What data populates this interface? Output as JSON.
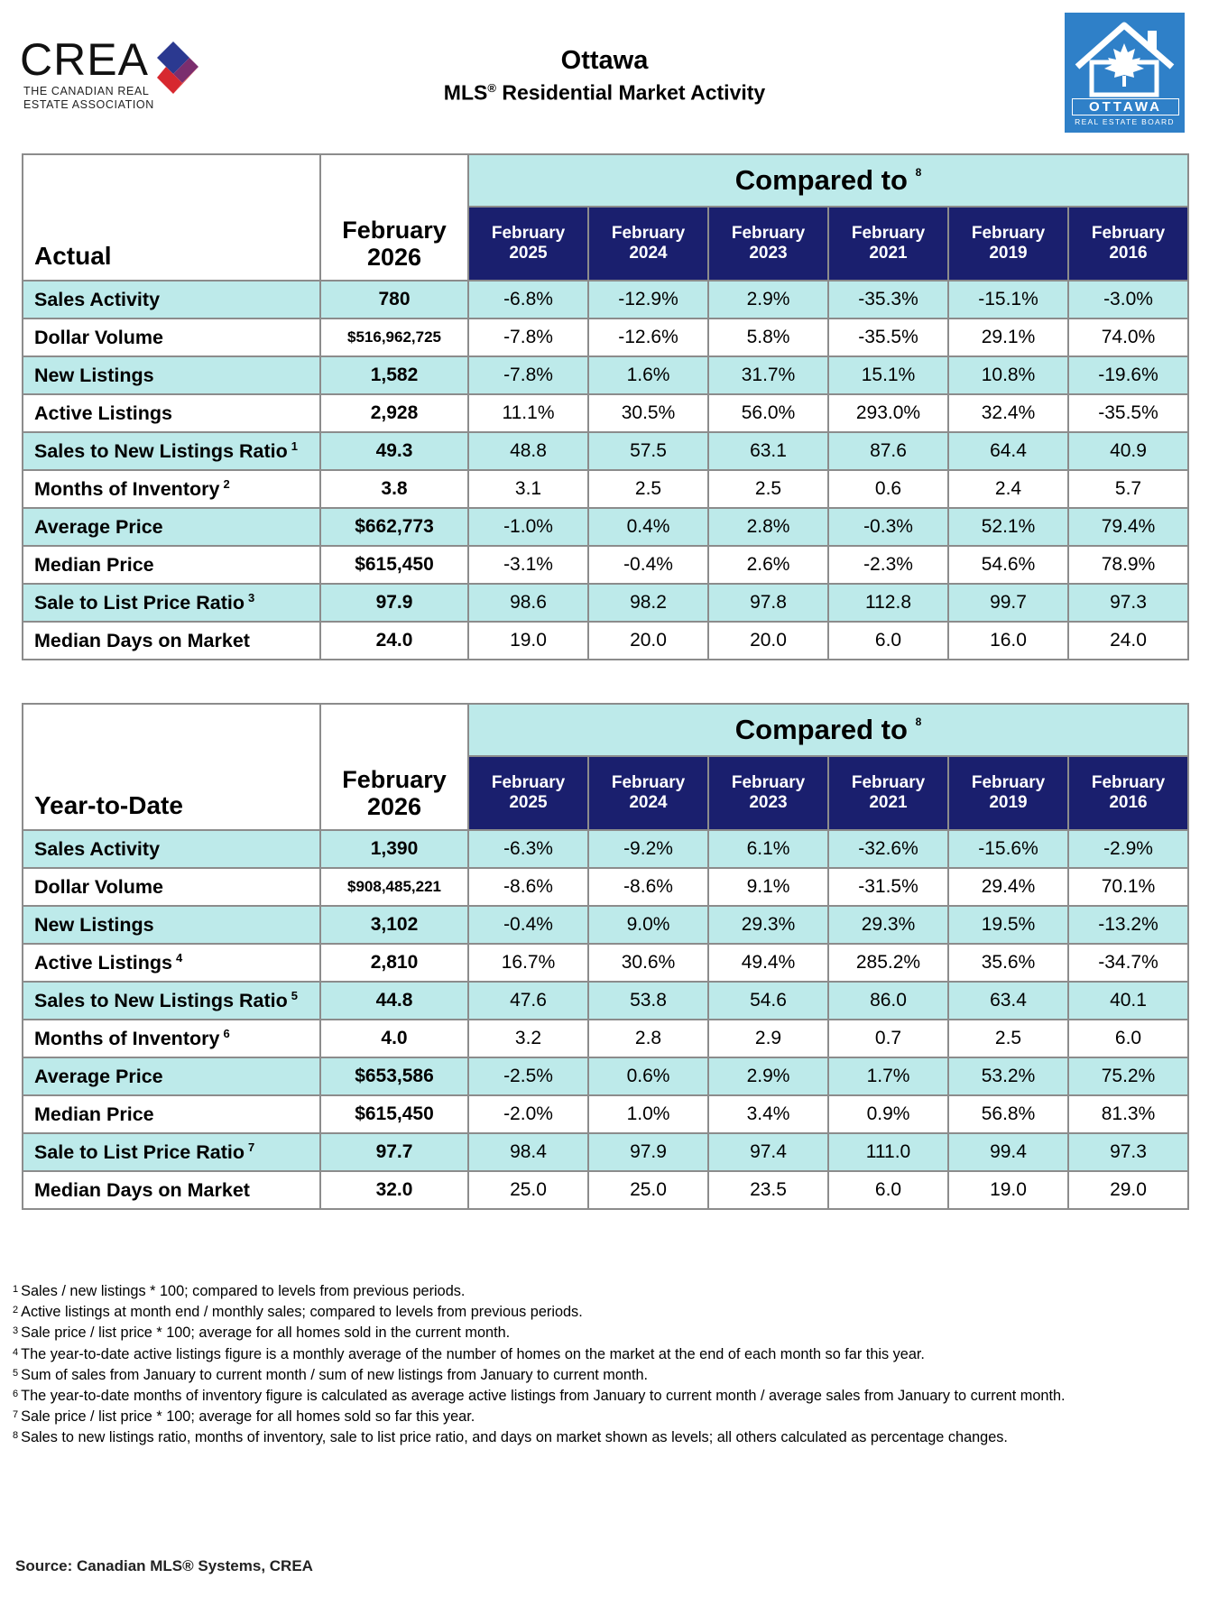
{
  "header": {
    "crea_wordmark": "CREA",
    "crea_subtitle_line1": "THE CANADIAN REAL",
    "crea_subtitle_line2": "ESTATE ASSOCIATION",
    "city": "Ottawa",
    "subtitle_prefix": "MLS",
    "subtitle_reg": "®",
    "subtitle_suffix": " Residential Market Activity",
    "board_logo_word": "OTTAWA",
    "board_logo_sub": "REAL ESTATE BOARD",
    "colors": {
      "crea_red": "#d7282f",
      "crea_blue": "#2b3990",
      "board_blue": "#2f80c8",
      "header_navy": "#1a1f6e",
      "row_shade": "#bdeaea"
    }
  },
  "actual": {
    "corner_label": "Actual",
    "current_line1": "February",
    "current_line2": "2026",
    "compared_label": "Compared to",
    "compared_note": "8",
    "years": [
      {
        "line1": "February",
        "line2": "2025"
      },
      {
        "line1": "February",
        "line2": "2024"
      },
      {
        "line1": "February",
        "line2": "2023"
      },
      {
        "line1": "February",
        "line2": "2021"
      },
      {
        "line1": "February",
        "line2": "2019"
      },
      {
        "line1": "February",
        "line2": "2016"
      }
    ],
    "rows": [
      {
        "label": "Sales Activity",
        "note": "",
        "current": "780",
        "values": [
          "-6.8%",
          "-12.9%",
          "2.9%",
          "-35.3%",
          "-15.1%",
          "-3.0%"
        ]
      },
      {
        "label": "Dollar Volume",
        "note": "",
        "current": "$516,962,725",
        "values": [
          "-7.8%",
          "-12.6%",
          "5.8%",
          "-35.5%",
          "29.1%",
          "74.0%"
        ]
      },
      {
        "label": "New Listings",
        "note": "",
        "current": "1,582",
        "values": [
          "-7.8%",
          "1.6%",
          "31.7%",
          "15.1%",
          "10.8%",
          "-19.6%"
        ]
      },
      {
        "label": "Active Listings",
        "note": "",
        "current": "2,928",
        "values": [
          "11.1%",
          "30.5%",
          "56.0%",
          "293.0%",
          "32.4%",
          "-35.5%"
        ]
      },
      {
        "label": "Sales to New Listings Ratio",
        "note": "1",
        "current": "49.3",
        "values": [
          "48.8",
          "57.5",
          "63.1",
          "87.6",
          "64.4",
          "40.9"
        ]
      },
      {
        "label": "Months of Inventory",
        "note": "2",
        "current": "3.8",
        "values": [
          "3.1",
          "2.5",
          "2.5",
          "0.6",
          "2.4",
          "5.7"
        ]
      },
      {
        "label": "Average Price",
        "note": "",
        "current": "$662,773",
        "values": [
          "-1.0%",
          "0.4%",
          "2.8%",
          "-0.3%",
          "52.1%",
          "79.4%"
        ]
      },
      {
        "label": "Median Price",
        "note": "",
        "current": "$615,450",
        "values": [
          "-3.1%",
          "-0.4%",
          "2.6%",
          "-2.3%",
          "54.6%",
          "78.9%"
        ]
      },
      {
        "label": "Sale to List Price Ratio",
        "note": "3",
        "current": "97.9",
        "values": [
          "98.6",
          "98.2",
          "97.8",
          "112.8",
          "99.7",
          "97.3"
        ]
      },
      {
        "label": "Median Days on Market",
        "note": "",
        "current": "24.0",
        "values": [
          "19.0",
          "20.0",
          "20.0",
          "6.0",
          "16.0",
          "24.0"
        ]
      }
    ]
  },
  "ytd": {
    "corner_label": "Year-to-Date",
    "current_line1": "February",
    "current_line2": "2026",
    "compared_label": "Compared to",
    "compared_note": "8",
    "years": [
      {
        "line1": "February",
        "line2": "2025"
      },
      {
        "line1": "February",
        "line2": "2024"
      },
      {
        "line1": "February",
        "line2": "2023"
      },
      {
        "line1": "February",
        "line2": "2021"
      },
      {
        "line1": "February",
        "line2": "2019"
      },
      {
        "line1": "February",
        "line2": "2016"
      }
    ],
    "rows": [
      {
        "label": "Sales Activity",
        "note": "",
        "current": "1,390",
        "values": [
          "-6.3%",
          "-9.2%",
          "6.1%",
          "-32.6%",
          "-15.6%",
          "-2.9%"
        ]
      },
      {
        "label": "Dollar Volume",
        "note": "",
        "current": "$908,485,221",
        "values": [
          "-8.6%",
          "-8.6%",
          "9.1%",
          "-31.5%",
          "29.4%",
          "70.1%"
        ]
      },
      {
        "label": "New Listings",
        "note": "",
        "current": "3,102",
        "values": [
          "-0.4%",
          "9.0%",
          "29.3%",
          "29.3%",
          "19.5%",
          "-13.2%"
        ]
      },
      {
        "label": "Active Listings",
        "note": "4",
        "current": "2,810",
        "values": [
          "16.7%",
          "30.6%",
          "49.4%",
          "285.2%",
          "35.6%",
          "-34.7%"
        ]
      },
      {
        "label": "Sales to New Listings Ratio",
        "note": "5",
        "current": "44.8",
        "values": [
          "47.6",
          "53.8",
          "54.6",
          "86.0",
          "63.4",
          "40.1"
        ]
      },
      {
        "label": "Months of Inventory",
        "note": "6",
        "current": "4.0",
        "values": [
          "3.2",
          "2.8",
          "2.9",
          "0.7",
          "2.5",
          "6.0"
        ]
      },
      {
        "label": "Average Price",
        "note": "",
        "current": "$653,586",
        "values": [
          "-2.5%",
          "0.6%",
          "2.9%",
          "1.7%",
          "53.2%",
          "75.2%"
        ]
      },
      {
        "label": "Median Price",
        "note": "",
        "current": "$615,450",
        "values": [
          "-2.0%",
          "1.0%",
          "3.4%",
          "0.9%",
          "56.8%",
          "81.3%"
        ]
      },
      {
        "label": "Sale to List Price Ratio",
        "note": "7",
        "current": "97.7",
        "values": [
          "98.4",
          "97.9",
          "97.4",
          "111.0",
          "99.4",
          "97.3"
        ]
      },
      {
        "label": "Median Days on Market",
        "note": "",
        "current": "32.0",
        "values": [
          "25.0",
          "25.0",
          "23.5",
          "6.0",
          "19.0",
          "29.0"
        ]
      }
    ]
  },
  "footnotes": [
    {
      "num": "1",
      "text": "Sales / new listings * 100; compared to levels from previous periods."
    },
    {
      "num": "2",
      "text": "Active listings at month end / monthly sales; compared to levels from previous periods."
    },
    {
      "num": "3",
      "text": "Sale price / list price * 100; average for all homes sold in the current month."
    },
    {
      "num": "4",
      "text": "The year-to-date active listings figure is a monthly average of the number of homes on the market at the end of each month so far this year."
    },
    {
      "num": "5",
      "text": "Sum of sales from January to current month / sum of new listings from January to current month."
    },
    {
      "num": "6",
      "text": "The year-to-date months of inventory figure is calculated as average active listings from January to current month / average sales from January to current month."
    },
    {
      "num": "7",
      "text": "Sale price / list price * 100; average for all homes sold so far this year."
    },
    {
      "num": "8",
      "text": "Sales to new listings ratio, months of inventory, sale to list price ratio, and days on market shown as levels; all others calculated as percentage changes."
    }
  ],
  "source": "Source: Canadian MLS® Systems, CREA"
}
